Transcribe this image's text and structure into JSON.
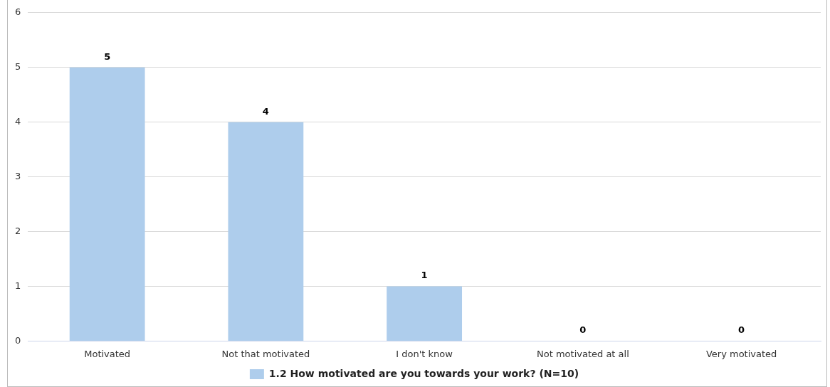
{
  "chart_data": {
    "type": "bar",
    "categories": [
      "Motivated",
      "Not that motivated",
      "I don't know",
      "Not motivated at all",
      "Very motivated"
    ],
    "series": [
      {
        "name": "1.2 How motivated are you towards your work? (N=10)",
        "color": "#aecdec",
        "values": [
          5,
          4,
          1,
          0,
          0
        ]
      }
    ],
    "ylim": [
      0,
      6
    ],
    "yticks": [
      0,
      1,
      2,
      3,
      4,
      5,
      6
    ],
    "grid": "y",
    "legend": "bottom",
    "data_labels": true
  }
}
